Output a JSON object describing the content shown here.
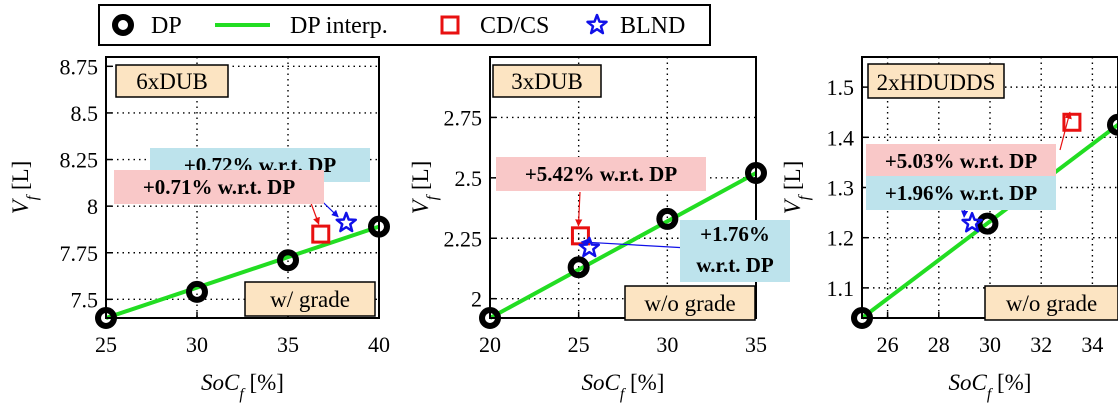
{
  "legend": {
    "items": [
      {
        "label": "DP",
        "marker": "circle",
        "color": "#000000"
      },
      {
        "label": "DP interp.",
        "marker": "line",
        "color": "#22dd22"
      },
      {
        "label": "CD/CS",
        "marker": "square",
        "color": "#e81010"
      },
      {
        "label": "BLND",
        "marker": "star",
        "color": "#1010e8"
      }
    ]
  },
  "colors": {
    "dp": "#000000",
    "interp": "#22dd22",
    "cdcs": "#e81010",
    "blnd": "#1010e8",
    "label_bg": "#fce4c2",
    "red_note_bg": "#f9c8c8",
    "blue_note_bg": "#bde3ec"
  },
  "chart_data": [
    {
      "type": "line",
      "label": "6xDUB",
      "condition": "w/ grade",
      "xlabel": "SoC_f [%]",
      "ylabel": "V_f [L]",
      "xlim": [
        25,
        40
      ],
      "ylim": [
        7.4,
        8.8
      ],
      "xticks": [
        25,
        30,
        35,
        40
      ],
      "yticks": [
        7.5,
        7.75,
        8,
        8.25,
        8.5,
        8.75
      ],
      "ytick_labels": [
        "7.5",
        "7.75",
        "8",
        "8.25",
        "8.5",
        "8.75"
      ],
      "grid": true,
      "series": [
        {
          "name": "DP",
          "x": [
            25,
            30,
            35,
            40
          ],
          "y": [
            7.4,
            7.54,
            7.71,
            7.89
          ]
        },
        {
          "name": "DP interp.",
          "x": [
            25,
            40
          ],
          "y": [
            7.4,
            7.89
          ]
        },
        {
          "name": "CD/CS",
          "x": [
            36.8
          ],
          "y": [
            7.85
          ]
        },
        {
          "name": "BLND",
          "x": [
            38.2
          ],
          "y": [
            7.91
          ]
        }
      ],
      "annotations": [
        {
          "text": "+0.72% w.r.t. DP",
          "color": "#1010e8",
          "target": "BLND"
        },
        {
          "text": "+0.71% w.r.t. DP",
          "color": "#e81010",
          "target": "CD/CS"
        }
      ]
    },
    {
      "type": "line",
      "label": "3xDUB",
      "condition": "w/o grade",
      "xlabel": "SoC_f [%]",
      "ylabel": "V_f [L]",
      "xlim": [
        20,
        35
      ],
      "ylim": [
        1.92,
        3
      ],
      "xticks": [
        20,
        25,
        30,
        35
      ],
      "yticks": [
        2,
        2.25,
        2.5,
        2.75
      ],
      "ytick_labels": [
        "2",
        "2.25",
        "2.5",
        "2.75"
      ],
      "grid": true,
      "series": [
        {
          "name": "DP",
          "x": [
            20,
            25,
            30,
            35
          ],
          "y": [
            1.92,
            2.13,
            2.33,
            2.52
          ]
        },
        {
          "name": "DP interp.",
          "x": [
            20,
            35
          ],
          "y": [
            1.92,
            2.52
          ]
        },
        {
          "name": "CD/CS",
          "x": [
            25.1
          ],
          "y": [
            2.26
          ]
        },
        {
          "name": "BLND",
          "x": [
            25.6
          ],
          "y": [
            2.21
          ]
        }
      ],
      "annotations": [
        {
          "text": "+5.42% w.r.t. DP",
          "color": "#e81010",
          "target": "CD/CS"
        },
        {
          "text": "+1.76%",
          "text2": "w.r.t. DP",
          "color": "#1010e8",
          "target": "BLND"
        }
      ]
    },
    {
      "type": "line",
      "label": "2xHDUDDS",
      "condition": "w/o grade",
      "xlabel": "SoC_f [%]",
      "ylabel": "V_f [L]",
      "xlim": [
        25,
        35
      ],
      "ylim": [
        1.04,
        1.56
      ],
      "xticks": [
        26,
        28,
        30,
        32,
        34
      ],
      "yticks": [
        1.1,
        1.2,
        1.3,
        1.4,
        1.5
      ],
      "ytick_labels": [
        "1.1",
        "1.2",
        "1.3",
        "1.4",
        "1.5"
      ],
      "grid": true,
      "series": [
        {
          "name": "DP",
          "x": [
            25,
            29.9,
            35
          ],
          "y": [
            1.04,
            1.228,
            1.425
          ]
        },
        {
          "name": "DP interp.",
          "x": [
            25,
            35
          ],
          "y": [
            1.04,
            1.425
          ]
        },
        {
          "name": "CD/CS",
          "x": [
            33.2
          ],
          "y": [
            1.43
          ]
        },
        {
          "name": "BLND",
          "x": [
            29.3
          ],
          "y": [
            1.229
          ]
        }
      ],
      "annotations": [
        {
          "text": "+5.03% w.r.t. DP",
          "color": "#e81010",
          "target": "CD/CS"
        },
        {
          "text": "+1.96% w.r.t. DP",
          "color": "#1010e8",
          "target": "BLND"
        }
      ]
    }
  ]
}
